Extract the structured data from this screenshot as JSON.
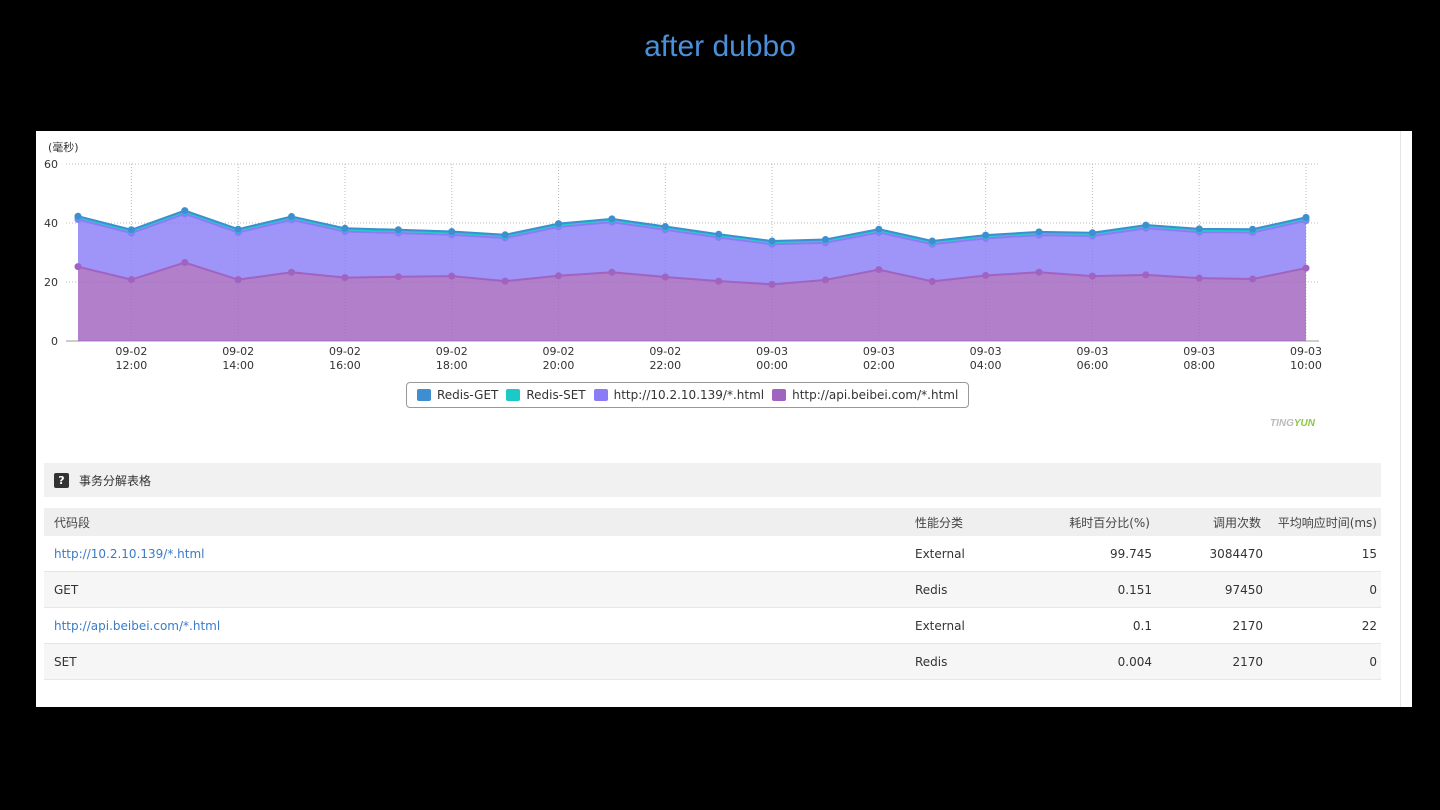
{
  "slide_title": "after dubbo",
  "chart_data": {
    "type": "area",
    "ylabel": "(毫秒)",
    "ylim": [
      0,
      60
    ],
    "yticks": [
      0,
      20,
      40,
      60
    ],
    "grid": true,
    "legend_position": "bottom-center",
    "x_tick_labels": [
      [
        "09-02",
        "12:00"
      ],
      [
        "09-02",
        "14:00"
      ],
      [
        "09-02",
        "16:00"
      ],
      [
        "09-02",
        "18:00"
      ],
      [
        "09-02",
        "20:00"
      ],
      [
        "09-02",
        "22:00"
      ],
      [
        "09-03",
        "00:00"
      ],
      [
        "09-03",
        "02:00"
      ],
      [
        "09-03",
        "04:00"
      ],
      [
        "09-03",
        "06:00"
      ],
      [
        "09-03",
        "08:00"
      ],
      [
        "09-03",
        "10:00"
      ]
    ],
    "x_tick_index": [
      1,
      3,
      5,
      7,
      9,
      11,
      13,
      15,
      17,
      19,
      21,
      23
    ],
    "x": [
      "09-02 11:00",
      "09-02 12:00",
      "09-02 13:00",
      "09-02 14:00",
      "09-02 15:00",
      "09-02 16:00",
      "09-02 17:00",
      "09-02 18:00",
      "09-02 19:00",
      "09-02 20:00",
      "09-02 21:00",
      "09-02 22:00",
      "09-02 23:00",
      "09-03 00:00",
      "09-03 01:00",
      "09-03 02:00",
      "09-03 03:00",
      "09-03 04:00",
      "09-03 05:00",
      "09-03 06:00",
      "09-03 07:00",
      "09-03 08:00",
      "09-03 09:00",
      "09-03 10:00"
    ],
    "stacked": true,
    "series": [
      {
        "name": "Redis-GET",
        "color": "#3d8fd1",
        "values": [
          0.3,
          0.3,
          0.3,
          0.3,
          0.3,
          0.3,
          0.3,
          0.3,
          0.3,
          0.3,
          0.3,
          0.3,
          0.3,
          0.3,
          0.3,
          0.3,
          0.3,
          0.3,
          0.3,
          0.3,
          0.3,
          0.3,
          0.3,
          0.3
        ]
      },
      {
        "name": "Redis-SET",
        "color": "#1cc9c6",
        "values": [
          0.8,
          0.8,
          0.8,
          0.8,
          0.8,
          0.8,
          0.8,
          0.8,
          0.8,
          0.8,
          0.8,
          0.8,
          0.8,
          0.8,
          0.8,
          0.8,
          0.8,
          0.8,
          0.8,
          0.8,
          0.8,
          0.8,
          0.8,
          0.8
        ]
      },
      {
        "name": "http://10.2.10.139/*.html",
        "color": "#8a7cf7",
        "values": [
          16.0,
          15.8,
          16.5,
          16.0,
          17.8,
          15.6,
          14.8,
          14.0,
          14.6,
          16.6,
          17.0,
          16.0,
          14.8,
          13.6,
          12.6,
          12.6,
          12.6,
          12.6,
          12.6,
          13.6,
          15.8,
          15.6,
          15.8,
          16.1
        ]
      },
      {
        "name": "http://api.beibei.com/*.html",
        "color": "#a163c0",
        "values": [
          25.2,
          20.8,
          26.6,
          20.8,
          23.3,
          21.5,
          21.8,
          22.0,
          20.3,
          22.1,
          23.3,
          21.7,
          20.3,
          19.2,
          20.7,
          24.2,
          20.2,
          22.2,
          23.3,
          22.0,
          22.4,
          21.3,
          21.0,
          24.7
        ]
      }
    ]
  },
  "branding": {
    "ting": "TING",
    "yun": "YUN"
  },
  "section": {
    "title": "事务分解表格",
    "help_icon": "?"
  },
  "table": {
    "headers": [
      "代码段",
      "性能分类",
      "耗时百分比(%)",
      "调用次数",
      "平均响应时间(ms)"
    ],
    "rows": [
      {
        "segment": "http://10.2.10.139/*.html",
        "category": "External",
        "percent": "99.745",
        "calls": "3084470",
        "avg": "15",
        "link": true
      },
      {
        "segment": "GET",
        "category": "Redis",
        "percent": "0.151",
        "calls": "97450",
        "avg": "0",
        "link": false
      },
      {
        "segment": "http://api.beibei.com/*.html",
        "category": "External",
        "percent": "0.1",
        "calls": "2170",
        "avg": "22",
        "link": true
      },
      {
        "segment": "SET",
        "category": "Redis",
        "percent": "0.004",
        "calls": "2170",
        "avg": "0",
        "link": false
      }
    ]
  }
}
